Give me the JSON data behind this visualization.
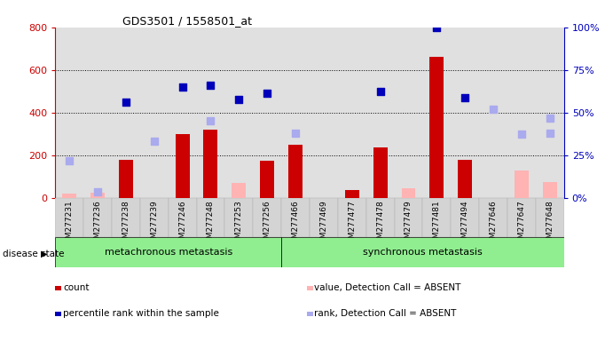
{
  "title": "GDS3501 / 1558501_at",
  "samples": [
    "GSM277231",
    "GSM277236",
    "GSM277238",
    "GSM277239",
    "GSM277246",
    "GSM277248",
    "GSM277253",
    "GSM277256",
    "GSM277466",
    "GSM277469",
    "GSM277477",
    "GSM277478",
    "GSM277479",
    "GSM277481",
    "GSM277494",
    "GSM277646",
    "GSM277647",
    "GSM277648"
  ],
  "count": [
    0,
    0,
    180,
    0,
    300,
    320,
    0,
    175,
    250,
    0,
    35,
    235,
    0,
    660,
    180,
    0,
    0,
    0
  ],
  "count_absent": [
    20,
    25,
    0,
    0,
    0,
    0,
    70,
    0,
    0,
    0,
    0,
    0,
    45,
    0,
    0,
    0,
    130,
    75
  ],
  "percentile_rank": [
    null,
    null,
    450,
    null,
    520,
    530,
    460,
    490,
    null,
    null,
    null,
    500,
    null,
    800,
    470,
    null,
    null,
    null
  ],
  "percentile_rank_absent": [
    175,
    30,
    null,
    265,
    null,
    360,
    null,
    null,
    305,
    null,
    null,
    null,
    null,
    null,
    null,
    null,
    null,
    305
  ],
  "rank_absent": [
    null,
    null,
    null,
    null,
    null,
    null,
    null,
    null,
    null,
    null,
    null,
    null,
    null,
    null,
    null,
    415,
    300,
    375
  ],
  "group1_count": 8,
  "group1_label": "metachronous metastasis",
  "group2_label": "synchronous metastasis",
  "ylim_left": [
    0,
    800
  ],
  "ylim_right": [
    0,
    100
  ],
  "yticks_left": [
    0,
    200,
    400,
    600,
    800
  ],
  "yticks_right": [
    0,
    25,
    50,
    75,
    100
  ],
  "bar_color": "#cc0000",
  "bar_absent_color": "#ffb3b3",
  "dot_color": "#0000bb",
  "dot_absent_color": "#aaaaee",
  "bg_color": "#e0e0e0",
  "group_bg": "#90ee90",
  "left_axis_color": "#cc0000",
  "right_axis_color": "#0000bb"
}
